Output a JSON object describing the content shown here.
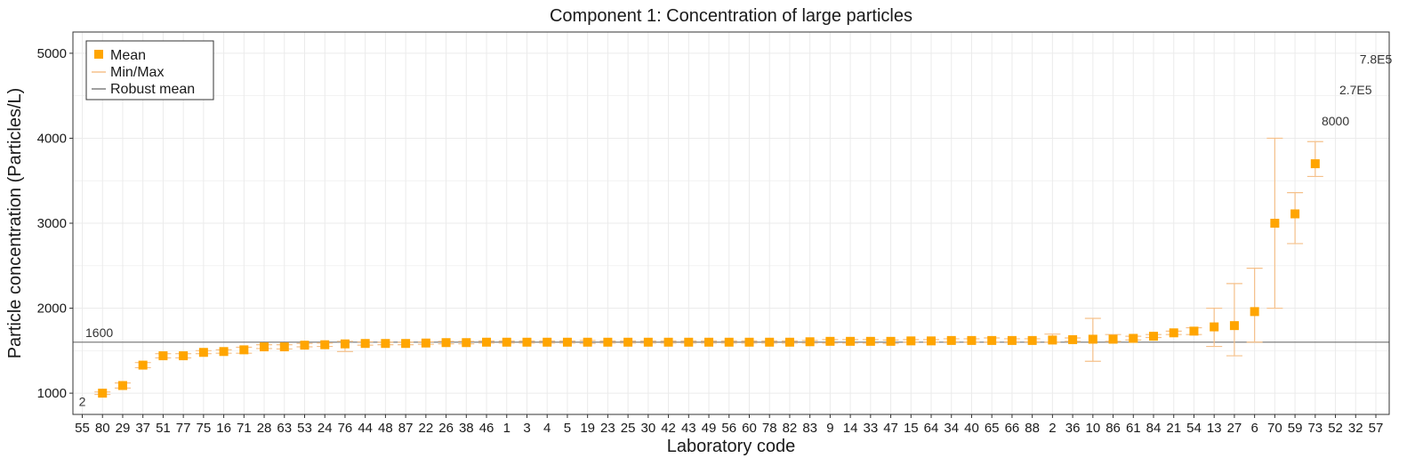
{
  "chart_data": {
    "type": "scatter",
    "title": "Component 1: Concentration of large particles",
    "xlabel": "Laboratory code",
    "ylabel": "Particle concentration (Particles/L)",
    "ylim": [
      750,
      5250
    ],
    "yticks": [
      1000,
      2000,
      3000,
      4000,
      5000
    ],
    "grid": true,
    "legend_position": "top-left",
    "legend": {
      "mean": "Mean",
      "minmax": "Min/Max",
      "robust": "Robust mean"
    },
    "robust_mean": 1600,
    "robust_mean_label": "1600",
    "colors": {
      "mean": "#FFA500",
      "minmax": "#F5C08A",
      "robust": "#7f7f7f"
    },
    "categories": [
      "55",
      "80",
      "29",
      "37",
      "51",
      "77",
      "75",
      "16",
      "71",
      "28",
      "63",
      "53",
      "24",
      "76",
      "44",
      "48",
      "87",
      "22",
      "26",
      "38",
      "46",
      "1",
      "3",
      "4",
      "5",
      "19",
      "23",
      "25",
      "30",
      "42",
      "43",
      "49",
      "56",
      "60",
      "78",
      "82",
      "83",
      "9",
      "14",
      "33",
      "47",
      "15",
      "64",
      "34",
      "40",
      "65",
      "66",
      "88",
      "2",
      "36",
      "10",
      "86",
      "61",
      "84",
      "21",
      "54",
      "13",
      "27",
      "6",
      "70",
      "59",
      "73",
      "52",
      "32",
      "57"
    ],
    "mean": [
      null,
      1000,
      1090,
      1330,
      1440,
      1440,
      1480,
      1490,
      1510,
      1545,
      1545,
      1565,
      1570,
      1580,
      1585,
      1585,
      1585,
      1590,
      1595,
      1595,
      1600,
      1600,
      1600,
      1600,
      1600,
      1600,
      1600,
      1600,
      1600,
      1600,
      1600,
      1600,
      1600,
      1600,
      1600,
      1600,
      1605,
      1610,
      1610,
      1610,
      1610,
      1615,
      1615,
      1620,
      1620,
      1620,
      1620,
      1620,
      1625,
      1630,
      1635,
      1635,
      1645,
      1670,
      1710,
      1730,
      1780,
      1795,
      1960,
      3000,
      3110,
      3700,
      null,
      null,
      null
    ],
    "min": [
      null,
      985,
      1060,
      1300,
      1415,
      1415,
      1465,
      1470,
      1470,
      1525,
      1520,
      1545,
      1550,
      1490,
      1565,
      1570,
      1570,
      1575,
      1580,
      1580,
      1590,
      1590,
      1590,
      1590,
      1590,
      1585,
      1590,
      1590,
      1590,
      1590,
      1590,
      1590,
      1590,
      1590,
      1590,
      1590,
      1590,
      1590,
      1590,
      1590,
      1585,
      1600,
      1600,
      1605,
      1600,
      1600,
      1605,
      1605,
      1600,
      1610,
      1375,
      1610,
      1625,
      1655,
      1690,
      1690,
      1550,
      1440,
      1600,
      2000,
      2760,
      3550,
      null,
      null,
      null
    ],
    "max": [
      null,
      1015,
      1120,
      1360,
      1465,
      1465,
      1500,
      1510,
      1540,
      1570,
      1570,
      1585,
      1590,
      1610,
      1605,
      1600,
      1600,
      1605,
      1610,
      1610,
      1615,
      1615,
      1615,
      1615,
      1615,
      1620,
      1615,
      1615,
      1615,
      1615,
      1615,
      1615,
      1615,
      1615,
      1615,
      1615,
      1620,
      1630,
      1630,
      1630,
      1625,
      1630,
      1630,
      1640,
      1640,
      1650,
      1640,
      1640,
      1695,
      1650,
      1880,
      1690,
      1670,
      1690,
      1730,
      1770,
      2000,
      2290,
      2470,
      4000,
      3360,
      3960,
      null,
      null,
      null
    ],
    "annotations": [
      {
        "label": "2",
        "x": "55",
        "y": 850
      },
      {
        "label": "7.8E5",
        "x": "57",
        "y": 4880
      },
      {
        "label": "2.7E5",
        "x": "32",
        "y": 4520
      },
      {
        "label": "8000",
        "x": "52",
        "y": 4150
      }
    ]
  }
}
